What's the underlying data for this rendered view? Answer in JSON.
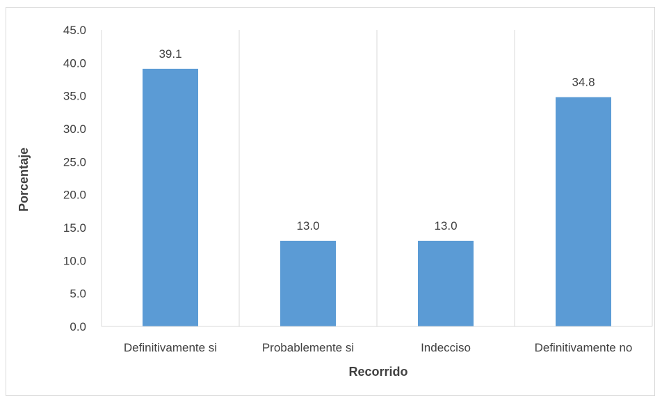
{
  "chart_data": {
    "type": "bar",
    "categories": [
      "Definitivamente si",
      "Probablemente si",
      "Indecciso",
      "Definitivamente no"
    ],
    "values": [
      39.1,
      13.0,
      13.0,
      34.8
    ],
    "data_labels": [
      "39.1",
      "13.0",
      "13.0",
      "34.8"
    ],
    "xlabel": "Recorrido",
    "ylabel": "Porcentaje",
    "ylim": [
      0,
      45
    ],
    "yticks": [
      0,
      5,
      10,
      15,
      20,
      25,
      30,
      35,
      40,
      45
    ],
    "ytick_labels": [
      "0.0",
      "5.0",
      "10.0",
      "15.0",
      "20.0",
      "25.0",
      "30.0",
      "35.0",
      "40.0",
      "45.0"
    ],
    "grid": "vertical category separators",
    "legend": "none",
    "bar_color": "#5b9bd5",
    "grid_color": "#d9d9d9"
  }
}
